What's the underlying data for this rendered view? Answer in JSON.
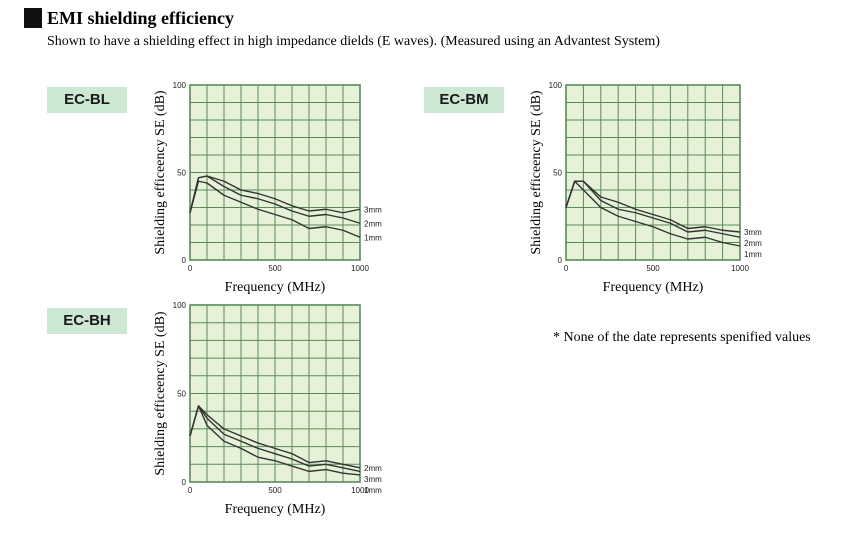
{
  "header": {
    "title": "EMI shielding efficiency",
    "subtitle": "Shown to have a shielding effect in high impedance dields (E waves). (Measured using an Advantest System)"
  },
  "note": "* None of the date represents spenified values",
  "colors": {
    "plot_bg": "#e6f2d8",
    "grid": "#5a8a5a",
    "line": "#333333",
    "badge_bg": "#cce8d2"
  },
  "chart_data": [
    {
      "type": "line",
      "badge": "EC-BL",
      "xlabel": "Frequency (MHz)",
      "ylabel": "Shielding efficeency SE (dB)",
      "xlim": [
        0,
        1000
      ],
      "ylim": [
        0,
        100
      ],
      "xticks": [
        "0",
        "500",
        "1000"
      ],
      "yticks": [
        "0",
        "50",
        "100"
      ],
      "series": [
        {
          "name": "3mm",
          "x": [
            0,
            50,
            100,
            200,
            300,
            400,
            500,
            600,
            700,
            800,
            900,
            1000
          ],
          "y": [
            27,
            47,
            48,
            45,
            40,
            38,
            35,
            31,
            28,
            29,
            27,
            29
          ]
        },
        {
          "name": "2mm",
          "x": [
            0,
            50,
            100,
            200,
            300,
            400,
            500,
            600,
            700,
            800,
            900,
            1000
          ],
          "y": [
            27,
            47,
            48,
            42,
            37,
            35,
            32,
            28,
            25,
            26,
            24,
            21
          ]
        },
        {
          "name": "1mm",
          "x": [
            0,
            50,
            100,
            200,
            300,
            400,
            500,
            600,
            700,
            800,
            900,
            1000
          ],
          "y": [
            27,
            45,
            44,
            37,
            33,
            29,
            26,
            23,
            18,
            19,
            17,
            13
          ]
        }
      ]
    },
    {
      "type": "line",
      "badge": "EC-BM",
      "xlabel": "Frequency (MHz)",
      "ylabel": "Shielding efficeency SE (dB)",
      "xlim": [
        0,
        1000
      ],
      "ylim": [
        0,
        100
      ],
      "xticks": [
        "0",
        "500",
        "1000"
      ],
      "yticks": [
        "0",
        "50",
        "100"
      ],
      "series": [
        {
          "name": "3mm",
          "x": [
            0,
            50,
            100,
            200,
            300,
            400,
            500,
            600,
            700,
            800,
            900,
            1000
          ],
          "y": [
            30,
            45,
            45,
            36,
            33,
            29,
            26,
            23,
            18,
            19,
            17,
            16
          ]
        },
        {
          "name": "2mm",
          "x": [
            0,
            50,
            100,
            200,
            300,
            400,
            500,
            600,
            700,
            800,
            900,
            1000
          ],
          "y": [
            30,
            45,
            45,
            34,
            29,
            27,
            24,
            21,
            16,
            17,
            15,
            13
          ]
        },
        {
          "name": "1mm",
          "x": [
            0,
            50,
            100,
            200,
            300,
            400,
            500,
            600,
            700,
            800,
            900,
            1000
          ],
          "y": [
            30,
            45,
            40,
            30,
            25,
            22,
            19,
            15,
            12,
            13,
            10,
            8
          ]
        }
      ]
    },
    {
      "type": "line",
      "badge": "EC-BH",
      "xlabel": "Frequency (MHz)",
      "ylabel": "Shielding efficeency SE (dB)",
      "xlim": [
        0,
        1000
      ],
      "ylim": [
        0,
        100
      ],
      "xticks": [
        "0",
        "500",
        "1000"
      ],
      "yticks": [
        "0",
        "50",
        "100"
      ],
      "series": [
        {
          "name": "2mm",
          "x": [
            0,
            50,
            100,
            200,
            300,
            400,
            500,
            600,
            700,
            800,
            900,
            1000
          ],
          "y": [
            26,
            43,
            38,
            30,
            26,
            22,
            19,
            16,
            11,
            12,
            10,
            8
          ]
        },
        {
          "name": "3mm",
          "x": [
            0,
            50,
            100,
            200,
            300,
            400,
            500,
            600,
            700,
            800,
            900,
            1000
          ],
          "y": [
            26,
            43,
            36,
            27,
            23,
            19,
            16,
            13,
            9,
            10,
            8,
            6
          ]
        },
        {
          "name": "1mm",
          "x": [
            0,
            50,
            100,
            200,
            300,
            400,
            500,
            600,
            700,
            800,
            900,
            1000
          ],
          "y": [
            26,
            43,
            32,
            23,
            19,
            14,
            12,
            9,
            6,
            7,
            5,
            4
          ]
        }
      ]
    }
  ]
}
